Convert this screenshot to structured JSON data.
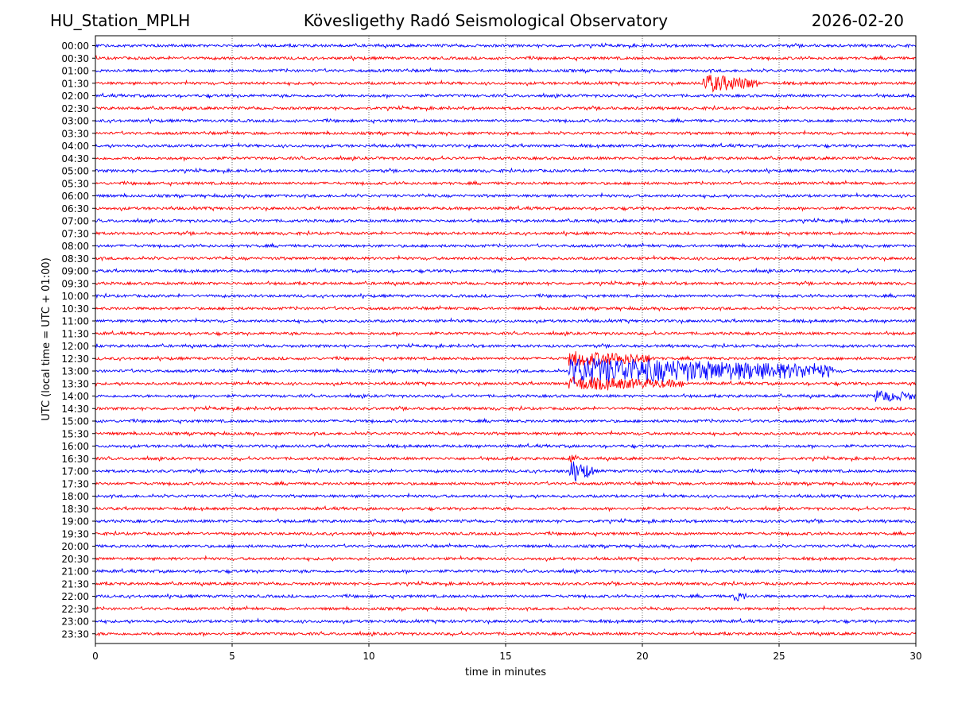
{
  "header": {
    "station": "HU_Station_MPLH",
    "observatory": "Kövesligethy Radó Seismological Observatory",
    "date": "2026-02-20"
  },
  "chart_data": {
    "type": "line",
    "title": "Kövesligethy Radó Seismological Observatory",
    "xlabel": "time in minutes",
    "ylabel": "UTC (local time = UTC + 01:00)",
    "xlim": [
      0,
      30
    ],
    "x_ticks": [
      0,
      5,
      10,
      15,
      20,
      25,
      30
    ],
    "x_tick_labels": [
      "0",
      "5",
      "10",
      "15",
      "20",
      "25",
      "30"
    ],
    "vertical_gridlines": [
      5,
      10,
      15,
      20,
      25
    ],
    "grid": "vertical dotted",
    "rows": [
      "00:00",
      "00:30",
      "01:00",
      "01:30",
      "02:00",
      "02:30",
      "03:00",
      "03:30",
      "04:00",
      "04:30",
      "05:00",
      "05:30",
      "06:00",
      "06:30",
      "07:00",
      "07:30",
      "08:00",
      "08:30",
      "09:00",
      "09:30",
      "10:00",
      "10:30",
      "11:00",
      "11:30",
      "12:00",
      "12:30",
      "13:00",
      "13:30",
      "14:00",
      "14:30",
      "15:00",
      "15:30",
      "16:00",
      "16:30",
      "17:00",
      "17:30",
      "18:00",
      "18:30",
      "19:00",
      "19:30",
      "20:00",
      "20:30",
      "21:00",
      "21:30",
      "22:00",
      "22:30",
      "23:00",
      "23:30"
    ],
    "row_colors": [
      "#0000ff",
      "#ff0000"
    ],
    "events": [
      {
        "row": "01:30",
        "start_min": 22.2,
        "end_min": 24.2,
        "amplitude": 2.6
      },
      {
        "row": "12:30",
        "start_min": 17.3,
        "end_min": 20.4,
        "amplitude": 2.2
      },
      {
        "row": "13:00",
        "start_min": 17.3,
        "end_min": 27.0,
        "amplitude": 4.0
      },
      {
        "row": "13:30",
        "start_min": 17.3,
        "end_min": 21.5,
        "amplitude": 1.8
      },
      {
        "row": "14:00",
        "start_min": 28.5,
        "end_min": 30.0,
        "amplitude": 1.6
      },
      {
        "row": "16:30",
        "start_min": 17.3,
        "end_min": 17.6,
        "amplitude": 1.5
      },
      {
        "row": "17:00",
        "start_min": 17.3,
        "end_min": 18.2,
        "amplitude": 3.2
      },
      {
        "row": "22:00",
        "start_min": 23.3,
        "end_min": 23.8,
        "amplitude": 1.4
      }
    ]
  }
}
